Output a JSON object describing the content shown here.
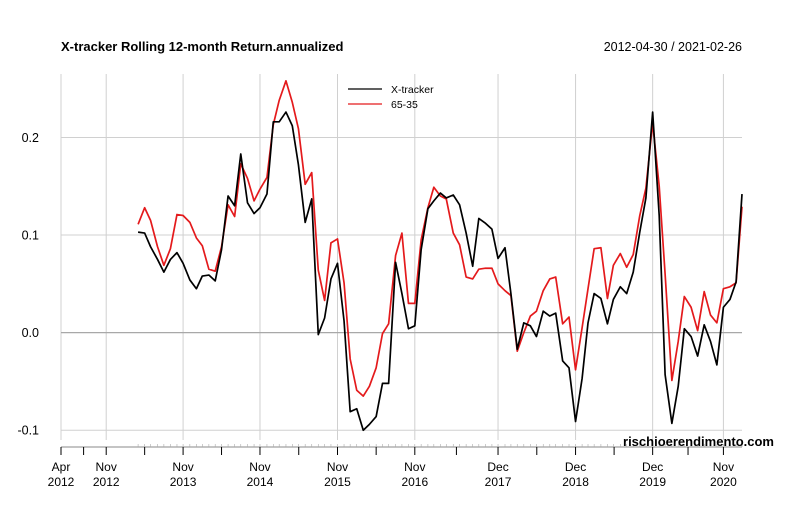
{
  "chart_data": {
    "type": "line",
    "title": "X-tracker Rolling 12-month Return.annualized",
    "date_range_label": "2012-04-30 / 2021-02-26",
    "watermark": "rischioerendimento.com",
    "ylim": [
      -0.11,
      0.265
    ],
    "y_ticks": [
      {
        "value": -0.1,
        "label": "-0.1"
      },
      {
        "value": 0.0,
        "label": "0.0"
      },
      {
        "value": 0.1,
        "label": "0.1"
      },
      {
        "value": 0.2,
        "label": "0.2"
      }
    ],
    "x_start": "2012-04-30",
    "x_end": "2021-02-26",
    "x_ticks": [
      {
        "date": "2012-04-30",
        "label": "Apr\n2012"
      },
      {
        "date": "2012-11-30",
        "label": "Nov\n2012"
      },
      {
        "date": "2013-11-29",
        "label": "Nov\n2013"
      },
      {
        "date": "2014-11-28",
        "label": "Nov\n2014"
      },
      {
        "date": "2015-11-30",
        "label": "Nov\n2015"
      },
      {
        "date": "2016-11-30",
        "label": "Nov\n2016"
      },
      {
        "date": "2017-12-29",
        "label": "Dec\n2017"
      },
      {
        "date": "2018-12-31",
        "label": "Dec\n2018"
      },
      {
        "date": "2019-12-31",
        "label": "Dec\n2019"
      },
      {
        "date": "2020-11-30",
        "label": "Nov\n2020"
      }
    ],
    "grid": true,
    "legend_position": "top-center",
    "dates": [
      "2013-04-30",
      "2013-05-31",
      "2013-06-28",
      "2013-07-31",
      "2013-08-30",
      "2013-09-30",
      "2013-10-31",
      "2013-11-29",
      "2013-12-31",
      "2014-01-31",
      "2014-02-28",
      "2014-03-31",
      "2014-04-30",
      "2014-05-30",
      "2014-06-30",
      "2014-07-31",
      "2014-08-29",
      "2014-09-30",
      "2014-10-31",
      "2014-11-28",
      "2014-12-31",
      "2015-01-30",
      "2015-02-27",
      "2015-03-31",
      "2015-04-30",
      "2015-05-29",
      "2015-06-30",
      "2015-07-31",
      "2015-08-31",
      "2015-09-30",
      "2015-10-30",
      "2015-11-30",
      "2015-12-31",
      "2016-01-29",
      "2016-02-29",
      "2016-03-31",
      "2016-04-29",
      "2016-05-31",
      "2016-06-30",
      "2016-07-29",
      "2016-08-31",
      "2016-09-30",
      "2016-10-31",
      "2016-11-30",
      "2016-12-30",
      "2017-01-31",
      "2017-02-28",
      "2017-03-31",
      "2017-04-28",
      "2017-05-31",
      "2017-06-30",
      "2017-07-31",
      "2017-08-31",
      "2017-09-29",
      "2017-10-31",
      "2017-11-30",
      "2017-12-29",
      "2018-01-31",
      "2018-02-28",
      "2018-03-30",
      "2018-04-30",
      "2018-05-31",
      "2018-06-29",
      "2018-07-31",
      "2018-08-31",
      "2018-09-28",
      "2018-10-31",
      "2018-11-30",
      "2018-12-31",
      "2019-01-31",
      "2019-02-28",
      "2019-03-29",
      "2019-04-30",
      "2019-05-31",
      "2019-06-28",
      "2019-07-31",
      "2019-08-30",
      "2019-09-30",
      "2019-10-31",
      "2019-11-29",
      "2019-12-31",
      "2020-01-31",
      "2020-02-28",
      "2020-03-31",
      "2020-04-30",
      "2020-05-29",
      "2020-06-30",
      "2020-07-31",
      "2020-08-31",
      "2020-09-30",
      "2020-10-30",
      "2020-11-30",
      "2020-12-31",
      "2021-01-29",
      "2021-02-26"
    ],
    "series": [
      {
        "name": "X-tracker",
        "color": "#000000",
        "values": [
          0.103,
          0.102,
          0.088,
          0.075,
          0.062,
          0.075,
          0.082,
          0.071,
          0.054,
          0.045,
          0.058,
          0.059,
          0.053,
          0.085,
          0.14,
          0.13,
          0.183,
          0.133,
          0.122,
          0.128,
          0.142,
          0.216,
          0.216,
          0.226,
          0.212,
          0.172,
          0.113,
          0.137,
          -0.002,
          0.015,
          0.055,
          0.071,
          0.012,
          -0.081,
          -0.078,
          -0.1,
          -0.094,
          -0.086,
          -0.052,
          -0.052,
          0.072,
          0.04,
          0.004,
          0.007,
          0.085,
          0.127,
          0.135,
          0.143,
          0.138,
          0.141,
          0.131,
          0.102,
          0.068,
          0.117,
          0.112,
          0.106,
          0.076,
          0.087,
          0.04,
          -0.017,
          0.01,
          0.007,
          -0.004,
          0.022,
          0.017,
          0.02,
          -0.029,
          -0.036,
          -0.091,
          -0.047,
          0.01,
          0.04,
          0.035,
          0.009,
          0.034,
          0.047,
          0.04,
          0.062,
          0.103,
          0.138,
          0.226,
          0.12,
          -0.043,
          -0.093,
          -0.055,
          0.004,
          -0.004,
          -0.024,
          0.008,
          -0.009,
          -0.033,
          0.026,
          0.034,
          0.052,
          0.142
        ]
      },
      {
        "name": "65-35",
        "color": "#e41a1c",
        "values": [
          0.111,
          0.128,
          0.115,
          0.088,
          0.069,
          0.086,
          0.121,
          0.12,
          0.113,
          0.097,
          0.089,
          0.065,
          0.063,
          0.088,
          0.131,
          0.119,
          0.173,
          0.158,
          0.135,
          0.147,
          0.159,
          0.213,
          0.238,
          0.258,
          0.236,
          0.209,
          0.152,
          0.164,
          0.064,
          0.033,
          0.092,
          0.096,
          0.051,
          -0.027,
          -0.059,
          -0.065,
          -0.055,
          -0.036,
          -0.001,
          0.009,
          0.079,
          0.102,
          0.03,
          0.03,
          0.095,
          0.128,
          0.149,
          0.14,
          0.137,
          0.102,
          0.09,
          0.057,
          0.055,
          0.065,
          0.066,
          0.066,
          0.05,
          0.043,
          0.038,
          -0.019,
          0.0,
          0.017,
          0.022,
          0.043,
          0.055,
          0.057,
          0.009,
          0.016,
          -0.038,
          0.005,
          0.045,
          0.086,
          0.087,
          0.035,
          0.069,
          0.081,
          0.067,
          0.08,
          0.12,
          0.148,
          0.215,
          0.15,
          0.06,
          -0.049,
          -0.009,
          0.037,
          0.026,
          0.002,
          0.042,
          0.018,
          0.01,
          0.045,
          0.047,
          0.051,
          0.129
        ]
      }
    ]
  }
}
